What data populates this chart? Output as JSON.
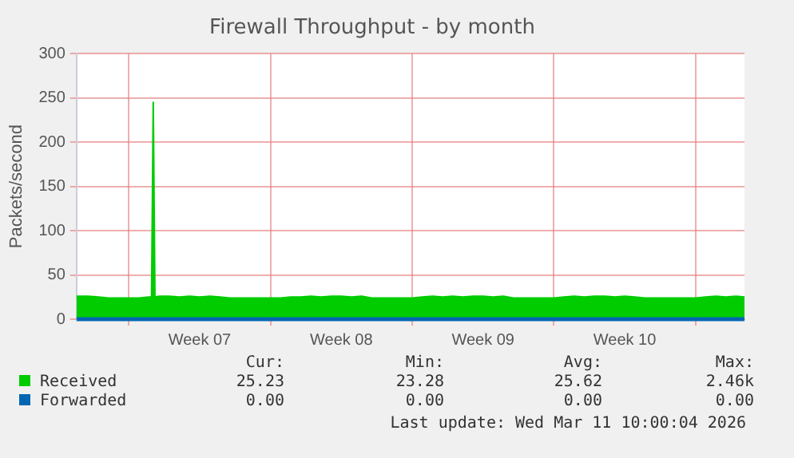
{
  "chart_data": {
    "type": "area",
    "title": "Firewall Throughput - by month",
    "ylabel": "Packets/second",
    "xlim": [
      "2026-02-06T10:00",
      "2026-03-11T10:00"
    ],
    "xticks": [
      {
        "value": "2026-02-09",
        "label": null
      },
      {
        "value": "2026-02-12T12:00",
        "label": "Week 07"
      },
      {
        "value": "2026-02-16",
        "label": null
      },
      {
        "value": "2026-02-19T12:00",
        "label": "Week 08"
      },
      {
        "value": "2026-02-23",
        "label": null
      },
      {
        "value": "2026-02-26T12:00",
        "label": "Week 09"
      },
      {
        "value": "2026-03-02",
        "label": null
      },
      {
        "value": "2026-03-05T12:00",
        "label": "Week 10"
      },
      {
        "value": "2026-03-09",
        "label": null
      }
    ],
    "ylim": [
      0,
      300
    ],
    "yticks": [
      0,
      50,
      100,
      150,
      200,
      250,
      300
    ],
    "grid": true,
    "legend": "bottom left",
    "x": [
      "2026-02-06T10:00",
      "2026-02-06T12:00",
      "2026-02-07",
      "2026-02-07T12:00",
      "2026-02-08",
      "2026-02-08T12:00",
      "2026-02-09",
      "2026-02-09T12:00",
      "2026-02-10",
      "2026-02-10T03:00",
      "2026-02-10T05:00",
      "2026-02-10T07:00",
      "2026-02-10T12:00",
      "2026-02-11",
      "2026-02-11T12:00",
      "2026-02-12",
      "2026-02-12T12:00",
      "2026-02-13",
      "2026-02-13T12:00",
      "2026-02-14",
      "2026-02-14T12:00",
      "2026-02-15",
      "2026-02-15T12:00",
      "2026-02-16",
      "2026-02-16T12:00",
      "2026-02-17",
      "2026-02-17T12:00",
      "2026-02-18",
      "2026-02-18T12:00",
      "2026-02-19",
      "2026-02-19T12:00",
      "2026-02-20",
      "2026-02-20T12:00",
      "2026-02-21",
      "2026-02-22",
      "2026-02-23",
      "2026-02-23T12:00",
      "2026-02-24",
      "2026-02-24T12:00",
      "2026-02-25",
      "2026-02-25T12:00",
      "2026-02-26",
      "2026-02-26T12:00",
      "2026-02-27",
      "2026-02-27T12:00",
      "2026-02-28",
      "2026-03-01",
      "2026-03-01T12:00",
      "2026-03-02",
      "2026-03-02T12:00",
      "2026-03-03",
      "2026-03-03T12:00",
      "2026-03-04",
      "2026-03-04T12:00",
      "2026-03-05",
      "2026-03-05T12:00",
      "2026-03-06",
      "2026-03-06T12:00",
      "2026-03-07",
      "2026-03-08",
      "2026-03-08T12:00",
      "2026-03-09",
      "2026-03-09T12:00",
      "2026-03-10",
      "2026-03-10T12:00",
      "2026-03-11",
      "2026-03-11T10:00"
    ],
    "series": [
      {
        "name": "Received",
        "color": "#00cc00",
        "values": [
          26,
          26,
          26,
          25,
          24,
          24,
          24,
          24,
          25,
          25,
          245,
          25,
          26,
          26,
          25,
          26,
          25,
          26,
          25,
          24,
          24,
          24,
          24,
          24,
          24,
          25,
          25,
          26,
          25,
          26,
          26,
          25,
          26,
          24,
          24,
          24,
          25,
          26,
          25,
          26,
          25,
          26,
          26,
          25,
          26,
          24,
          24,
          24,
          24,
          25,
          26,
          25,
          26,
          26,
          25,
          26,
          25,
          24,
          24,
          24,
          24,
          24,
          25,
          26,
          25,
          26,
          25
        ]
      },
      {
        "name": "Forwarded",
        "type": "line",
        "color": "#0066b3",
        "x": [
          "2026-02-06T10:00",
          "2026-03-11T10:00"
        ],
        "values": [
          0,
          0
        ]
      }
    ],
    "annotations": [
      "Cur:",
      "Min:",
      "Avg:",
      "Max:",
      "25.23",
      "23.28",
      "25.62",
      "2.46k",
      "0.00",
      "0.00",
      "0.00",
      "0.00",
      "Last update: Wed Mar 11 10:00:04 2026"
    ]
  }
}
